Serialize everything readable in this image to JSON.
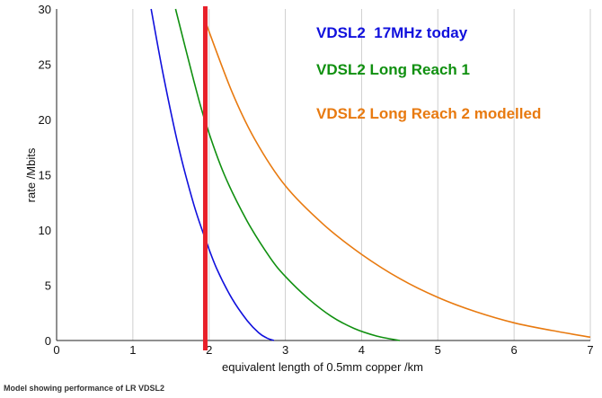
{
  "chart_data": {
    "type": "line",
    "title": "",
    "xlabel": "equivalent length of 0.5mm copper   /km",
    "ylabel": "rate  /Mbits",
    "xlim": [
      0,
      7
    ],
    "ylim": [
      0,
      30
    ],
    "xticks": [
      "0",
      "1",
      "2",
      "3",
      "4",
      "5",
      "6",
      "7"
    ],
    "yticks": [
      "0",
      "5",
      "10",
      "15",
      "20",
      "25",
      "30"
    ],
    "grid": "vertical",
    "legend_placement": "top-right",
    "series": [
      {
        "name": "VDSL2  17MHz today",
        "color": "#1010dd",
        "x": [
          1.24,
          1.4,
          1.6,
          1.8,
          1.95,
          2.1,
          2.3,
          2.5,
          2.65,
          2.75,
          2.85
        ],
        "y": [
          30,
          24,
          17.5,
          12.3,
          9.2,
          6.5,
          3.8,
          1.8,
          0.7,
          0.25,
          0
        ]
      },
      {
        "name": "VDSL2 Long Reach 1",
        "color": "#109010",
        "x": [
          1.56,
          1.8,
          1.95,
          2.2,
          2.5,
          2.8,
          3.0,
          3.3,
          3.6,
          3.9,
          4.2,
          4.5
        ],
        "y": [
          30,
          23.5,
          19.8,
          15,
          10.8,
          7.5,
          5.8,
          3.8,
          2.2,
          1.1,
          0.4,
          0
        ]
      },
      {
        "name": "VDSL2 Long Reach 2 modelled",
        "color": "#e87a10",
        "x": [
          1.97,
          2.3,
          2.6,
          3.0,
          3.5,
          4.0,
          4.5,
          5.0,
          5.5,
          6.0,
          6.5,
          7.0
        ],
        "y": [
          28.5,
          22.5,
          18.2,
          14,
          10.5,
          7.8,
          5.6,
          3.9,
          2.6,
          1.6,
          0.9,
          0.3
        ]
      }
    ],
    "markers": [
      {
        "type": "vertical-line",
        "x": 1.95,
        "color": "#e8202a"
      }
    ]
  },
  "caption": "Model showing performance of LR VDSL2"
}
